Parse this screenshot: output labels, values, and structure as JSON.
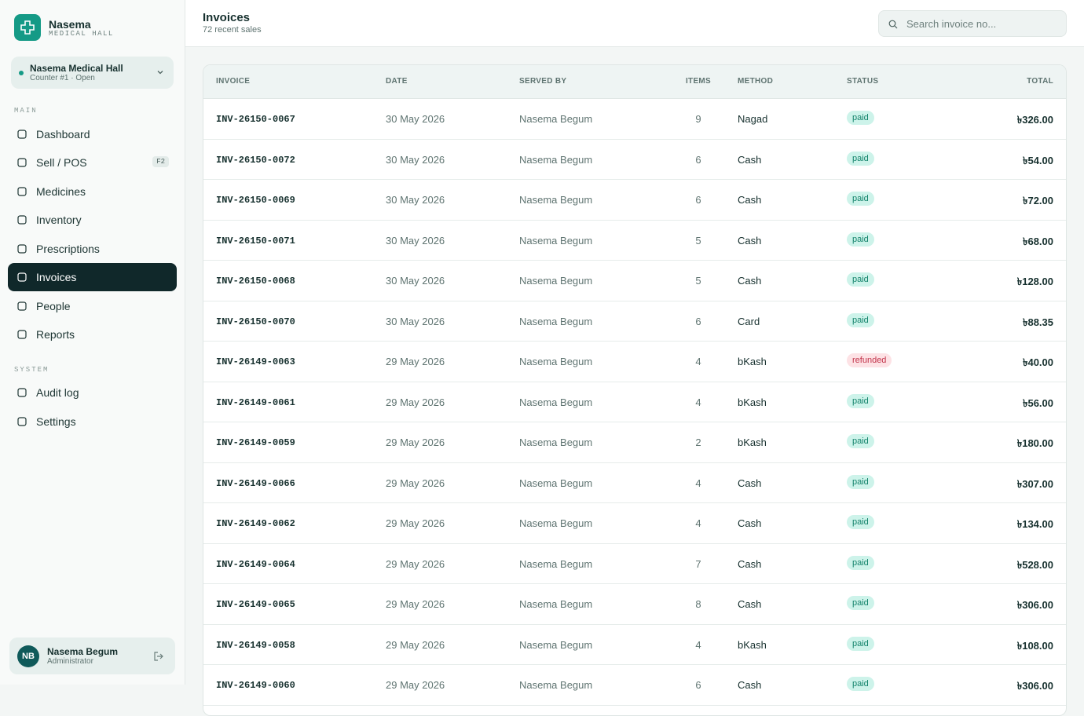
{
  "sidebar": {
    "brand": "Nasema",
    "brand_sub": "MEDICAL HALL",
    "store": {
      "name": "Nasema Medical Hall",
      "status": "Counter #1 · Open"
    },
    "sections": [
      {
        "label": "MAIN",
        "items": [
          "Dashboard",
          "Sell / POS",
          "Medicines",
          "Inventory",
          "Prescriptions",
          "Invoices",
          "People",
          "Reports"
        ]
      },
      {
        "label": "SYSTEM",
        "items": [
          "Audit log",
          "Settings"
        ]
      }
    ],
    "shortcut": "F2",
    "user": {
      "initials": "NB",
      "name": "Nasema Begum",
      "role": "Administrator"
    }
  },
  "header": {
    "title": "Invoices",
    "subtitle": "72 recent sales",
    "search_placeholder": "Search invoice no..."
  },
  "table": {
    "columns": [
      "INVOICE",
      "DATE",
      "SERVED BY",
      "ITEMS",
      "METHOD",
      "STATUS",
      "TOTAL"
    ],
    "rows": [
      [
        "INV-26150-0067",
        "30 May 2026",
        "Nasema Begum",
        9,
        "Nagad",
        "paid",
        "৳326.00"
      ],
      [
        "INV-26150-0072",
        "30 May 2026",
        "Nasema Begum",
        6,
        "Cash",
        "paid",
        "৳54.00"
      ],
      [
        "INV-26150-0069",
        "30 May 2026",
        "Nasema Begum",
        6,
        "Cash",
        "paid",
        "৳72.00"
      ],
      [
        "INV-26150-0071",
        "30 May 2026",
        "Nasema Begum",
        5,
        "Cash",
        "paid",
        "৳68.00"
      ],
      [
        "INV-26150-0068",
        "30 May 2026",
        "Nasema Begum",
        5,
        "Cash",
        "paid",
        "৳128.00"
      ],
      [
        "INV-26150-0070",
        "30 May 2026",
        "Nasema Begum",
        6,
        "Card",
        "paid",
        "৳88.35"
      ],
      [
        "INV-26149-0063",
        "29 May 2026",
        "Nasema Begum",
        4,
        "bKash",
        "refunded",
        "৳40.00"
      ],
      [
        "INV-26149-0061",
        "29 May 2026",
        "Nasema Begum",
        4,
        "bKash",
        "paid",
        "৳56.00"
      ],
      [
        "INV-26149-0059",
        "29 May 2026",
        "Nasema Begum",
        2,
        "bKash",
        "paid",
        "৳180.00"
      ],
      [
        "INV-26149-0066",
        "29 May 2026",
        "Nasema Begum",
        4,
        "Cash",
        "paid",
        "৳307.00"
      ],
      [
        "INV-26149-0062",
        "29 May 2026",
        "Nasema Begum",
        4,
        "Cash",
        "paid",
        "৳134.00"
      ],
      [
        "INV-26149-0064",
        "29 May 2026",
        "Nasema Begum",
        7,
        "Cash",
        "paid",
        "৳528.00"
      ],
      [
        "INV-26149-0065",
        "29 May 2026",
        "Nasema Begum",
        8,
        "Cash",
        "paid",
        "৳306.00"
      ],
      [
        "INV-26149-0058",
        "29 May 2026",
        "Nasema Begum",
        4,
        "bKash",
        "paid",
        "৳108.00"
      ],
      [
        "INV-26149-0060",
        "29 May 2026",
        "Nasema Begum",
        6,
        "Cash",
        "paid",
        "৳306.00"
      ]
    ]
  }
}
